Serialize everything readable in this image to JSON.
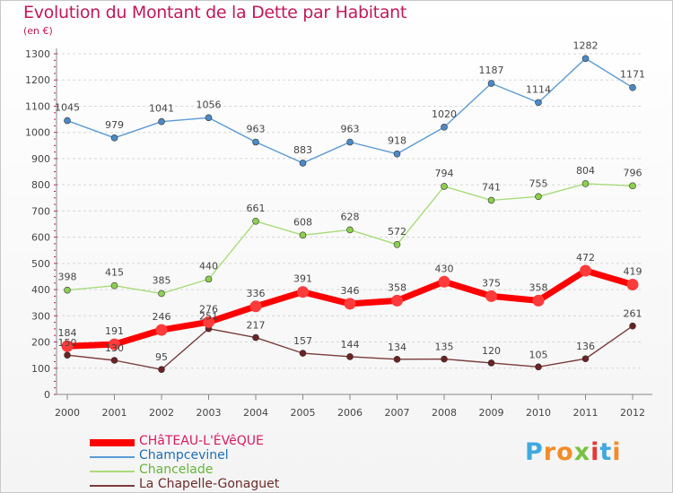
{
  "title": "Evolution du Montant de la Dette par Habitant",
  "subtitle": "(en €)",
  "logo": {
    "letters": [
      "P",
      "r",
      "o",
      "x",
      "i",
      "t",
      "i"
    ],
    "colors": [
      "#3fa9e0",
      "#f28c28",
      "#f28c28",
      "#7ac143",
      "#e53935",
      "#3fa9e0",
      "#f28c28"
    ]
  },
  "chart_data": {
    "type": "line",
    "title": "Evolution du Montant de la Dette par Habitant",
    "ylabel": "(en €)",
    "xlabel": "",
    "ylim": [
      0,
      1300
    ],
    "yticks": [
      "0",
      "100",
      "200",
      "300",
      "400",
      "500",
      "600",
      "700",
      "800",
      "900",
      "1000",
      "1100",
      "1200",
      "1300"
    ],
    "categories": [
      "2000",
      "2001",
      "2002",
      "2003",
      "2004",
      "2005",
      "2006",
      "2007",
      "2008",
      "2009",
      "2010",
      "2011",
      "2012"
    ],
    "grid": "horizontal dashed",
    "legend_position": "bottom-left",
    "series": [
      {
        "name": "Champcevinel",
        "color": "#5b9bd5",
        "marker": "#4a8ac6",
        "values": [
          1045,
          979,
          1041,
          1056,
          963,
          883,
          963,
          918,
          1020,
          1187,
          1114,
          1282,
          1171
        ]
      },
      {
        "name": "Chancelade",
        "color": "#a8dc7a",
        "marker": "#8ccf4f",
        "values": [
          398,
          415,
          385,
          440,
          661,
          608,
          628,
          572,
          794,
          741,
          755,
          804,
          796
        ]
      },
      {
        "name": "La Chapelle-Gonaguet",
        "color": "#7a3b3b",
        "marker": "#6a2323",
        "values": [
          150,
          130,
          95,
          251,
          217,
          157,
          144,
          134,
          135,
          120,
          105,
          136,
          261
        ]
      },
      {
        "name": "CHâTEAU-L'ÉVêQUE",
        "color": "#ff0000",
        "marker": "#ff3b3b",
        "values": [
          184,
          191,
          246,
          276,
          336,
          391,
          346,
          358,
          430,
          375,
          358,
          472,
          419
        ],
        "bold": true
      }
    ],
    "data_labels": {
      "Champcevinel": [
        "1045",
        "979",
        "1041",
        "1056",
        "963",
        "883",
        "963",
        "918",
        "1020",
        "1187",
        "1114",
        "1282",
        "1171"
      ],
      "Chancelade": [
        "398",
        "415",
        "385",
        "440",
        "661",
        "608",
        "628",
        "572",
        "794",
        "741",
        "755",
        "804",
        "796"
      ],
      "La Chapelle-Gonaguet": [
        "150",
        "130",
        "95",
        "251",
        "217",
        "157",
        "144",
        "134",
        "135",
        "120",
        "105",
        "136",
        "261"
      ],
      "CHâTEAU-L'ÉVêQUE": [
        "184",
        "191",
        "246",
        "276",
        "336",
        "391",
        "346",
        "358",
        "430",
        "375",
        "358",
        "472",
        "419"
      ]
    }
  },
  "legend": [
    {
      "label": "CHâTEAU-L'ÉVêQUE",
      "color": "#ff0000",
      "text_color": "#d81b60"
    },
    {
      "label": "Champcevinel",
      "color": "#5b9bd5",
      "text_color": "#1e6fb3"
    },
    {
      "label": "Chancelade",
      "color": "#a8dc7a",
      "text_color": "#69b33a"
    },
    {
      "label": "La Chapelle-Gonaguet",
      "color": "#7a3b3b",
      "text_color": "#6d2b2b"
    }
  ]
}
